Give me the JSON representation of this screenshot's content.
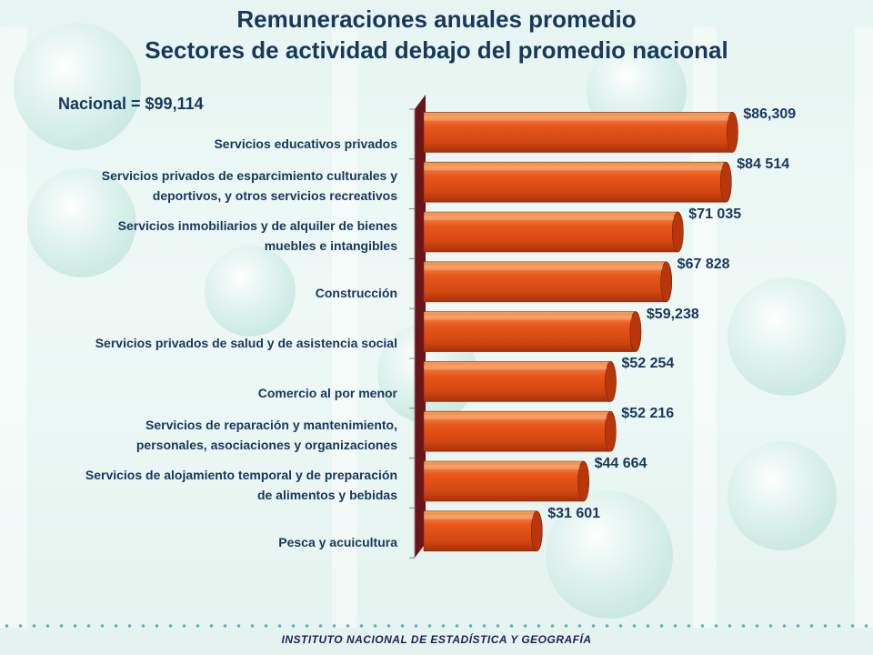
{
  "title_line1": "Remuneraciones anuales promedio",
  "title_line2": "Sectores de actividad debajo del promedio nacional",
  "nacional_label": "Nacional = $99,114",
  "footer": "INSTITUTO NACIONAL  DE ESTADÍSTICA Y GEOGRAFÍA",
  "colors": {
    "bar": "#e8561a",
    "bar_cap": "#b8360c",
    "wall": "#6b1518",
    "text": "#17375e"
  },
  "chart_data": {
    "type": "bar",
    "orientation": "horizontal",
    "title": "Remuneraciones anuales promedio",
    "subtitle": "Sectores de actividad debajo del promedio nacional",
    "annotation": "Nacional = $99,114",
    "categories": [
      [
        "Servicios educativos privados"
      ],
      [
        "Servicios privados de esparcimiento culturales y",
        "deportivos, y otros servicios recreativos"
      ],
      [
        "Servicios inmobiliarios y de alquiler de bienes",
        "muebles e intangibles"
      ],
      [
        "Construcción"
      ],
      [
        "Servicios privados de salud y de asistencia social"
      ],
      [
        "Comercio al por menor"
      ],
      [
        "Servicios de reparación y mantenimiento,",
        "personales, asociaciones y organizaciones"
      ],
      [
        "Servicios de alojamiento temporal y de preparación",
        "de alimentos y bebidas"
      ],
      [
        "Pesca y acuicultura"
      ]
    ],
    "values": [
      86309,
      84514,
      71035,
      67828,
      59238,
      52254,
      52216,
      44664,
      31601
    ],
    "data_labels": [
      "$86,309",
      "$84 514",
      "$71 035",
      "$67 828",
      "$59,238",
      "$52 254",
      "$52 216",
      "$44 664",
      "$31 601"
    ],
    "xlim": [
      0,
      88000
    ],
    "grid": false,
    "legend": "none"
  }
}
